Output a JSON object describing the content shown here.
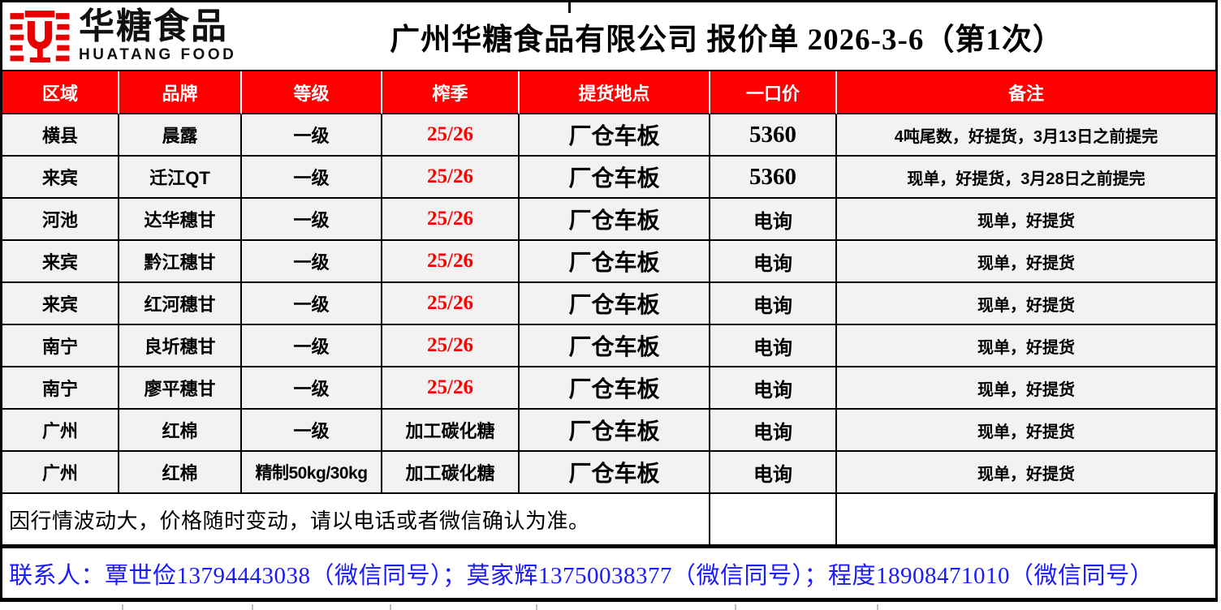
{
  "header": {
    "logo": {
      "brand_cn": "华糖食品",
      "brand_en": "HUATANG FOOD"
    },
    "title": "广州华糖食品有限公司 报价单 2026-3-6（第1次）"
  },
  "table": {
    "columns": [
      "区域",
      "品牌",
      "等级",
      "榨季",
      "提货地点",
      "一口价",
      "备注"
    ],
    "rows": [
      {
        "region": "横县",
        "brand": "晨露",
        "grade": "一级",
        "season": "25/26",
        "season_black": false,
        "pickup": "厂仓车板",
        "price": "5360",
        "note": "4吨尾数，好提货，3月13日之前提完"
      },
      {
        "region": "来宾",
        "brand": "迁江QT",
        "grade": "一级",
        "season": "25/26",
        "season_black": false,
        "pickup": "厂仓车板",
        "price": "5360",
        "note": "现单，好提货，3月28日之前提完"
      },
      {
        "region": "河池",
        "brand": "达华穗甘",
        "grade": "一级",
        "season": "25/26",
        "season_black": false,
        "pickup": "厂仓车板",
        "price": "电询",
        "note": "现单，好提货"
      },
      {
        "region": "来宾",
        "brand": "黔江穗甘",
        "grade": "一级",
        "season": "25/26",
        "season_black": false,
        "pickup": "厂仓车板",
        "price": "电询",
        "note": "现单，好提货"
      },
      {
        "region": "来宾",
        "brand": "红河穗甘",
        "grade": "一级",
        "season": "25/26",
        "season_black": false,
        "pickup": "厂仓车板",
        "price": "电询",
        "note": "现单，好提货"
      },
      {
        "region": "南宁",
        "brand": "良圻穗甘",
        "grade": "一级",
        "season": "25/26",
        "season_black": false,
        "pickup": "厂仓车板",
        "price": "电询",
        "note": "现单，好提货"
      },
      {
        "region": "南宁",
        "brand": "廖平穗甘",
        "grade": "一级",
        "season": "25/26",
        "season_black": false,
        "pickup": "厂仓车板",
        "price": "电询",
        "note": "现单，好提货"
      },
      {
        "region": "广州",
        "brand": "红棉",
        "grade": "一级",
        "season": "加工碳化糖",
        "season_black": true,
        "pickup": "厂仓车板",
        "price": "电询",
        "note": "现单，好提货"
      },
      {
        "region": "广州",
        "brand": "红棉",
        "grade": "精制50kg/30kg",
        "season": "加工碳化糖",
        "season_black": true,
        "pickup": "厂仓车板",
        "price": "电询",
        "note": "现单，好提货"
      }
    ],
    "disclaimer": "因行情波动大，价格随时变动，请以电话或者微信确认为准。",
    "contacts": "联系人：覃世俭13794443038（微信同号）；莫家辉13750038377（微信同号）；程度18908471010（微信同号）"
  },
  "colors": {
    "header_red": "#fe0000",
    "season_red": "#ff0000",
    "contact_blue": "#1a1aff",
    "row_bg": "#f2f2f2",
    "logo_red": "#e60000"
  }
}
